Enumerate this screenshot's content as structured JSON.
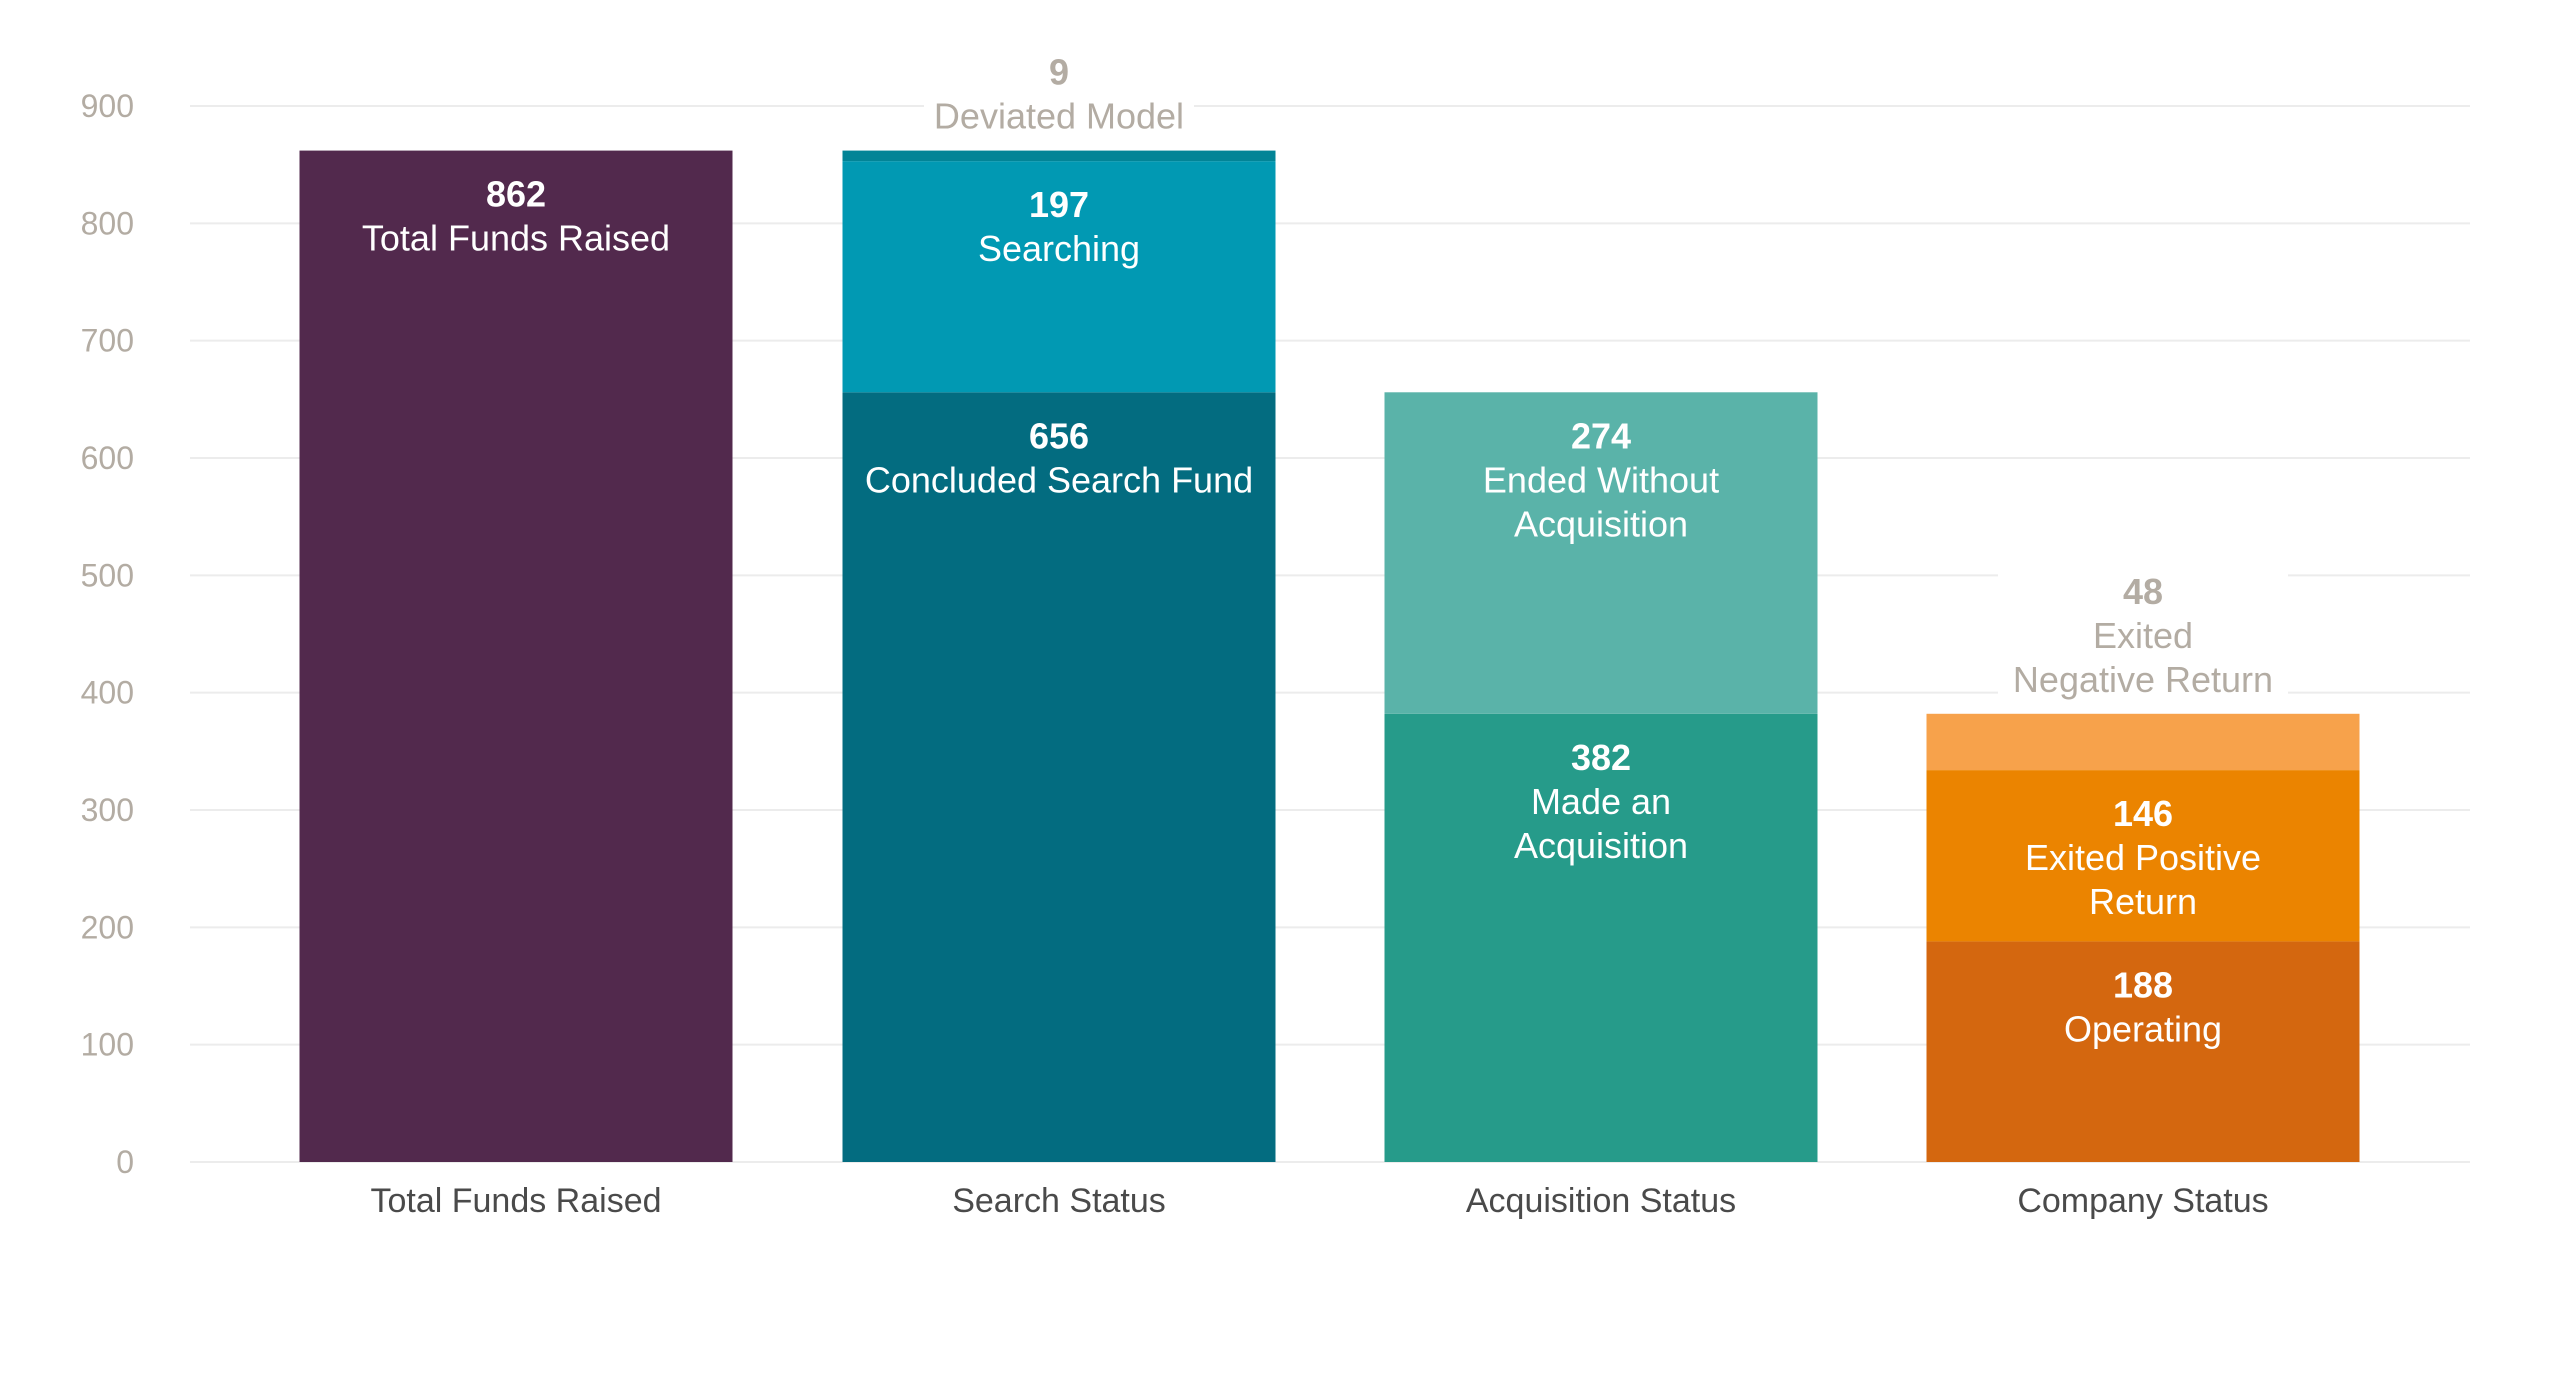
{
  "chart_data": {
    "type": "bar",
    "stacked": true,
    "title": "",
    "xlabel": "",
    "ylabel": "",
    "ylim": [
      0,
      900
    ],
    "yticks": [
      0,
      100,
      200,
      300,
      400,
      500,
      600,
      700,
      800,
      900
    ],
    "grid": true,
    "legend": "none",
    "categories": [
      "Total Funds Raised",
      "Search Status",
      "Acquisition Status",
      "Company Status"
    ],
    "stacks": [
      {
        "category": "Total Funds Raised",
        "segments": [
          {
            "name": "Total Funds Raised",
            "value": 862,
            "color": "#52294d",
            "label_lines": [
              "Total Funds Raised"
            ],
            "outside": false
          }
        ]
      },
      {
        "category": "Search Status",
        "segments": [
          {
            "name": "Concluded Search Fund",
            "value": 656,
            "color": "#036c80",
            "label_lines": [
              "Concluded Search Fund"
            ],
            "outside": false
          },
          {
            "name": "Searching",
            "value": 197,
            "color": "#0199b3",
            "label_lines": [
              "Searching"
            ],
            "outside": false
          },
          {
            "name": "Deviated Model",
            "value": 9,
            "color": "#028496",
            "label_lines": [
              "Deviated Model"
            ],
            "outside": true
          }
        ]
      },
      {
        "category": "Acquisition Status",
        "segments": [
          {
            "name": "Made an Acquisition",
            "value": 382,
            "color": "#269b8a",
            "label_lines": [
              "Made an",
              "Acquisition"
            ],
            "outside": false
          },
          {
            "name": "Ended Without Acquisition",
            "value": 274,
            "color": "#5ab3a9",
            "label_lines": [
              "Ended Without",
              "Acquisition"
            ],
            "outside": false
          }
        ]
      },
      {
        "category": "Company Status",
        "segments": [
          {
            "name": "Operating",
            "value": 188,
            "color": "#d4670f",
            "label_lines": [
              "Operating"
            ],
            "outside": false
          },
          {
            "name": "Exited Positive Return",
            "value": 146,
            "color": "#eb8400",
            "label_lines": [
              "Exited Positive",
              "Return"
            ],
            "outside": false
          },
          {
            "name": "Exited Negative Return",
            "value": 48,
            "color": "#f7a24b",
            "label_lines": [
              "Exited",
              "Negative Return"
            ],
            "outside": true
          }
        ]
      }
    ],
    "colors": {
      "inside_text": "#ffffff",
      "outside_text": "#b3aca3"
    }
  }
}
